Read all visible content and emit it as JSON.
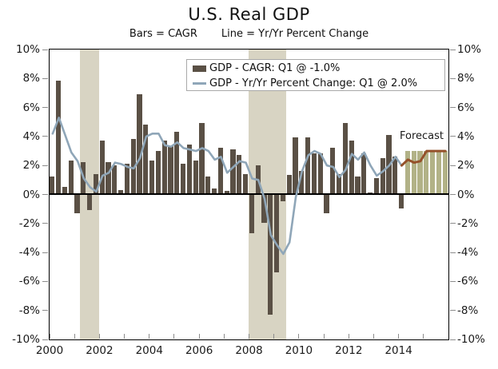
{
  "title": "U.S. Real GDP",
  "subtitle_bars": "Bars = CAGR",
  "subtitle_line": "Line = Yr/Yr Percent Change",
  "legend": {
    "bar_label": "GDP - CAGR: Q1 @ -1.0%",
    "line_label": "GDP - Yr/Yr Percent Change: Q1 @ 2.0%"
  },
  "forecast_label": "Forecast",
  "colors": {
    "bar": "#5a5045",
    "line": "#8fa6b8",
    "forecast_bar": "#b2b287",
    "forecast_line": "#95512a",
    "recession_band": "#d8d4c3",
    "axis": "#000000",
    "tick": "#8c8c8c",
    "text": "#1a1a1a"
  },
  "chart_data": {
    "type": "bar+line",
    "x_start_quarter": "2000Q1",
    "x_end_quarter": "2015Q4",
    "ylim": [
      -10,
      10
    ],
    "grid": false,
    "y_tick_labels": [
      "10%",
      "8%",
      "6%",
      "4%",
      "2%",
      "0%",
      "-2%",
      "-4%",
      "-6%",
      "-8%",
      "-10%"
    ],
    "x_tick_labels": [
      "2000",
      "2002",
      "2004",
      "2006",
      "2008",
      "2010",
      "2012",
      "2014"
    ],
    "bars_cagr": {
      "name": "GDP - CAGR (annualized quarterly % change)",
      "historical": [
        1.2,
        7.8,
        0.5,
        2.3,
        -1.3,
        2.2,
        -1.1,
        1.4,
        3.7,
        2.2,
        2.0,
        0.3,
        2.1,
        3.8,
        6.9,
        4.8,
        2.3,
        3.0,
        3.7,
        3.3,
        4.3,
        2.1,
        3.4,
        2.3,
        4.9,
        1.2,
        0.4,
        3.2,
        0.2,
        3.1,
        2.7,
        1.4,
        -2.7,
        2.0,
        -2.0,
        -8.3,
        -5.4,
        -0.5,
        1.3,
        3.9,
        1.6,
        3.9,
        2.8,
        2.8,
        -1.3,
        3.2,
        1.4,
        4.9,
        3.7,
        1.2,
        2.8,
        0.1,
        1.1,
        2.5,
        4.1,
        2.6,
        -1.0
      ],
      "forecast": [
        3.0,
        3.0,
        3.0,
        3.0,
        3.0,
        3.0,
        3.0
      ]
    },
    "line_yoy": {
      "name": "GDP - Yr/Yr Percent Change",
      "historical": [
        4.2,
        5.3,
        4.1,
        2.9,
        2.3,
        1.1,
        0.5,
        0.2,
        1.3,
        1.5,
        2.2,
        2.1,
        1.9,
        1.8,
        2.5,
        4.0,
        4.2,
        4.2,
        3.4,
        3.3,
        3.6,
        3.2,
        3.1,
        3.0,
        3.2,
        3.0,
        2.4,
        2.6,
        1.5,
        1.9,
        2.3,
        2.2,
        1.1,
        1.0,
        -0.3,
        -2.8,
        -3.5,
        -4.1,
        -3.3,
        -0.2,
        1.6,
        2.7,
        3.0,
        2.8,
        2.0,
        1.9,
        1.2,
        1.7,
        2.8,
        2.4,
        2.9,
        2.0,
        1.3,
        1.6,
        2.0,
        2.6,
        2.0
      ],
      "forecast": [
        2.0,
        2.4,
        2.2,
        2.3,
        3.0,
        3.0,
        3.0,
        3.0
      ]
    },
    "recessions": [
      {
        "label": "2001 recession",
        "start_q": 5,
        "end_q": 8
      },
      {
        "label": "2008-2009 recession",
        "start_q": 32,
        "end_q": 38
      }
    ]
  }
}
